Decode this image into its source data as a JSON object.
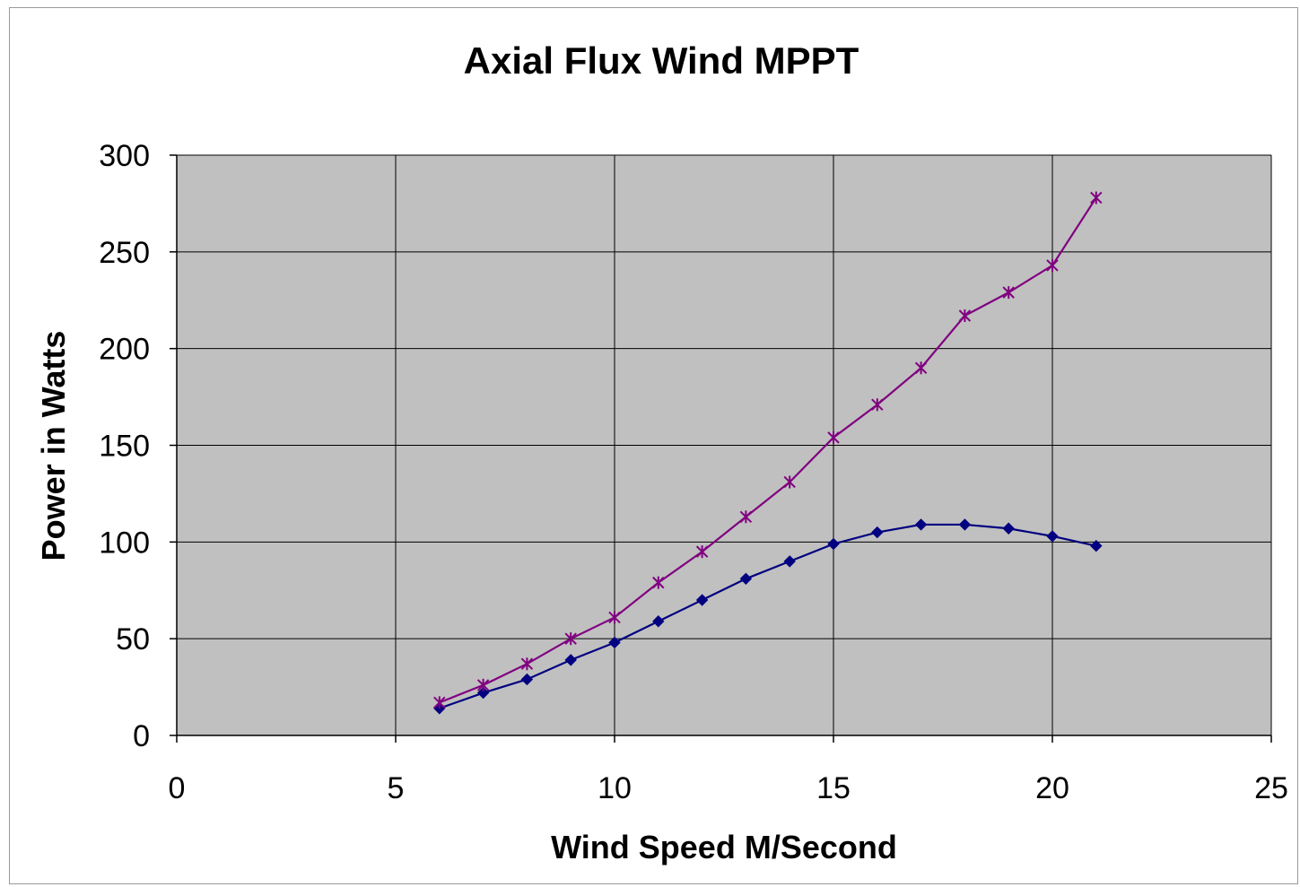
{
  "chart_data": {
    "type": "line",
    "title": "Axial Flux Wind MPPT",
    "xlabel": "Wind Speed M/Second",
    "ylabel": "Power in Watts",
    "xlim": [
      0,
      25
    ],
    "ylim": [
      0,
      300
    ],
    "x_ticks": [
      0,
      5,
      10,
      15,
      20,
      25
    ],
    "y_ticks": [
      0,
      50,
      100,
      150,
      200,
      250,
      300
    ],
    "grid": true,
    "plot_background": "#c0c0c0",
    "series": [
      {
        "color": "#000080",
        "marker": "diamond",
        "x": [
          6,
          7,
          8,
          9,
          10,
          11,
          12,
          13,
          14,
          15,
          16,
          17,
          18,
          19,
          20,
          21
        ],
        "values": [
          14,
          22,
          29,
          39,
          48,
          59,
          70,
          81,
          90,
          99,
          105,
          109,
          109,
          107,
          103,
          98
        ]
      },
      {
        "color": "#800080",
        "marker": "star",
        "x": [
          6,
          7,
          8,
          9,
          10,
          11,
          12,
          13,
          14,
          15,
          16,
          17,
          18,
          19,
          20,
          21
        ],
        "values": [
          17,
          26,
          37,
          50,
          61,
          79,
          95,
          113,
          131,
          154,
          171,
          190,
          217,
          229,
          243,
          278
        ]
      }
    ]
  }
}
